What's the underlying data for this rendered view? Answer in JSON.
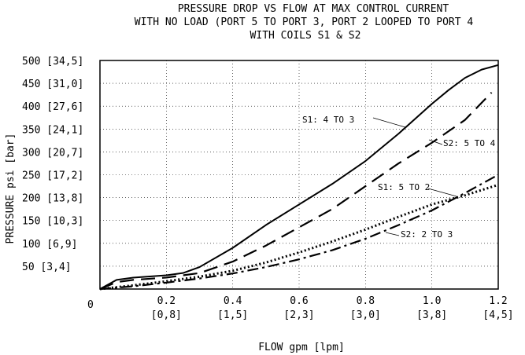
{
  "chart_data": {
    "type": "line",
    "title_lines": [
      "PRESSURE DROP VS FLOW AT MAX CONTROL CURRENT",
      "WITH NO LOAD (PORT 5 TO PORT 3, PORT 2 LOOPED TO PORT 4",
      "WITH COILS S1 & S2"
    ],
    "xlabel": "FLOW gpm [lpm]",
    "ylabel": "PRESSURE psi [bar]",
    "xlim": [
      0,
      1.2
    ],
    "ylim": [
      0,
      500
    ],
    "grid": true,
    "x_ticks": [
      {
        "value": 0.2,
        "primary": "0.2",
        "secondary": "[0,8]"
      },
      {
        "value": 0.4,
        "primary": "0.4",
        "secondary": "[1,5]"
      },
      {
        "value": 0.6,
        "primary": "0.6",
        "secondary": "[2,3]"
      },
      {
        "value": 0.8,
        "primary": "0.8",
        "secondary": "[3,0]"
      },
      {
        "value": 1.0,
        "primary": "1.0",
        "secondary": "[3,8]"
      },
      {
        "value": 1.2,
        "primary": "1.2",
        "secondary": "[4,5]"
      }
    ],
    "x_origin_label": "0",
    "y_ticks": [
      {
        "value": 50,
        "label": "50 [3,4]"
      },
      {
        "value": 100,
        "label": "100 [6,9]"
      },
      {
        "value": 150,
        "label": "150 [10,3]"
      },
      {
        "value": 200,
        "label": "200 [13,8]"
      },
      {
        "value": 250,
        "label": "250 [17,2]"
      },
      {
        "value": 300,
        "label": "300 [20,7]"
      },
      {
        "value": 350,
        "label": "350 [24,1]"
      },
      {
        "value": 400,
        "label": "400 [27,6]"
      },
      {
        "value": 450,
        "label": "450 [31,0]"
      },
      {
        "value": 500,
        "label": "500 [34,5]"
      }
    ],
    "series": [
      {
        "name": "S1: 4 TO 3",
        "style": "solid",
        "x": [
          0,
          0.05,
          0.1,
          0.2,
          0.25,
          0.3,
          0.4,
          0.5,
          0.6,
          0.7,
          0.8,
          0.9,
          1.0,
          1.05,
          1.1,
          1.15,
          1.2
        ],
        "y": [
          0,
          20,
          25,
          30,
          35,
          48,
          90,
          140,
          185,
          230,
          280,
          340,
          405,
          435,
          462,
          480,
          490
        ]
      },
      {
        "name": "S2: 5 TO 4",
        "style": "longdash",
        "x": [
          0,
          0.05,
          0.1,
          0.2,
          0.3,
          0.4,
          0.5,
          0.6,
          0.7,
          0.8,
          0.9,
          1.0,
          1.1,
          1.18
        ],
        "y": [
          0,
          15,
          20,
          25,
          35,
          60,
          95,
          135,
          175,
          225,
          275,
          320,
          370,
          430
        ]
      },
      {
        "name": "S1: 5 TO 2",
        "style": "dotted",
        "x": [
          0,
          0.1,
          0.2,
          0.3,
          0.4,
          0.5,
          0.6,
          0.7,
          0.8,
          0.9,
          1.0,
          1.1,
          1.2
        ],
        "y": [
          0,
          8,
          17,
          27,
          40,
          58,
          80,
          104,
          130,
          158,
          185,
          205,
          228
        ]
      },
      {
        "name": "S2: 2 TO 3",
        "style": "dashdot",
        "x": [
          0,
          0.1,
          0.2,
          0.3,
          0.4,
          0.5,
          0.6,
          0.7,
          0.8,
          0.9,
          1.0,
          1.1,
          1.2
        ],
        "y": [
          0,
          6,
          14,
          23,
          34,
          48,
          65,
          85,
          110,
          140,
          172,
          210,
          250
        ]
      }
    ]
  }
}
